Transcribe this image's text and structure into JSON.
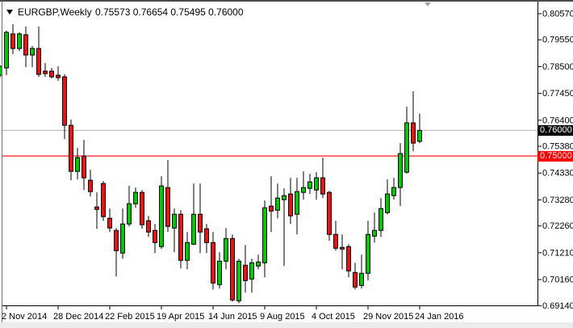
{
  "window": {
    "title_symbol": "EURGBP,Weekly",
    "title_ohlc": "0.75573 0.76654 0.75495 0.76000",
    "icons": {
      "symbol_dropdown": "triangle-down-icon",
      "shift_marker": "triangle-down-icon"
    }
  },
  "y_axis": {
    "labels": [
      "0.80570",
      "0.79550",
      "0.78500",
      "0.77450",
      "0.76400",
      "0.75380",
      "0.74330",
      "0.73280",
      "0.72260",
      "0.71210",
      "0.70160",
      "0.69140"
    ],
    "current_price_badge": {
      "text": "0.76000",
      "bg": "#000000",
      "fg": "#ffffff"
    },
    "line_badge": {
      "text": "0.75000",
      "bg": "#ff0000",
      "fg": "#ffffff"
    }
  },
  "x_axis": {
    "ticks": [
      {
        "label": "2 Nov 2014",
        "index": 0
      },
      {
        "label": "28 Dec 2014",
        "index": 8
      },
      {
        "label": "22 Feb 2015",
        "index": 16
      },
      {
        "label": "19 Apr 2015",
        "index": 24
      },
      {
        "label": "14 Jun 2015",
        "index": 32
      },
      {
        "label": "9 Aug 2015",
        "index": 40
      },
      {
        "label": "4 Oct 2015",
        "index": 48
      },
      {
        "label": "29 Nov 2015",
        "index": 56
      },
      {
        "label": "24 Jan 2016",
        "index": 64
      }
    ]
  },
  "chart_data": {
    "type": "candlestick",
    "symbol": "EURGBP",
    "timeframe": "Weekly",
    "last_bar": {
      "open": 0.75573,
      "high": 0.76654,
      "low": 0.75495,
      "close": 0.76
    },
    "y_range": {
      "top": 0.8057,
      "bottom": 0.6914
    },
    "hlines": [
      {
        "price": 0.76,
        "color": "#bababa",
        "role": "current-price-line"
      },
      {
        "price": 0.75,
        "color": "#ff0000",
        "role": "horizontal-level-line"
      }
    ],
    "up_color": "#00cb00",
    "down_color": "#ee1111",
    "outline_color": "#000000",
    "first_candle_index": -1,
    "candles": [
      [
        0.78164,
        0.7856,
        0.78069,
        0.78512
      ],
      [
        0.78449,
        0.79905,
        0.78164,
        0.79842
      ],
      [
        0.79779,
        0.80158,
        0.78987,
        0.79209
      ],
      [
        0.79209,
        0.79842,
        0.79114,
        0.79779
      ],
      [
        0.79747,
        0.80063,
        0.7848,
        0.78955
      ],
      [
        0.78955,
        0.79304,
        0.7848,
        0.79209
      ],
      [
        0.79209,
        0.80063,
        0.781,
        0.78196
      ],
      [
        0.78322,
        0.78638,
        0.781,
        0.78227
      ],
      [
        0.78322,
        0.78449,
        0.78037,
        0.781
      ],
      [
        0.78164,
        0.78512,
        0.77942,
        0.78069
      ],
      [
        0.781,
        0.78196,
        0.75663,
        0.76201
      ],
      [
        0.76201,
        0.76422,
        0.74049,
        0.74397
      ],
      [
        0.74397,
        0.75315,
        0.74081,
        0.74935
      ],
      [
        0.74998,
        0.75631,
        0.73669,
        0.74144
      ],
      [
        0.74049,
        0.7446,
        0.73416,
        0.73606
      ],
      [
        0.73004,
        0.73574,
        0.72148,
        0.72909
      ],
      [
        0.73922,
        0.74017,
        0.72465,
        0.72624
      ],
      [
        0.7256,
        0.7294,
        0.72022,
        0.7218
      ],
      [
        0.72085,
        0.7218,
        0.7028,
        0.71293
      ],
      [
        0.71198,
        0.7294,
        0.70976,
        0.72338
      ],
      [
        0.72338,
        0.73827,
        0.72243,
        0.7313
      ],
      [
        0.7313,
        0.73764,
        0.72972,
        0.73574
      ],
      [
        0.73574,
        0.73669,
        0.72148,
        0.72307
      ],
      [
        0.72465,
        0.72655,
        0.71832,
        0.72022
      ],
      [
        0.72085,
        0.72338,
        0.71198,
        0.7161
      ],
      [
        0.71451,
        0.74207,
        0.71356,
        0.73827
      ],
      [
        0.73764,
        0.7484,
        0.72022,
        0.72243
      ],
      [
        0.7218,
        0.7294,
        0.7123,
        0.72718
      ],
      [
        0.72718,
        0.72877,
        0.70596,
        0.70913
      ],
      [
        0.70913,
        0.72022,
        0.70565,
        0.7161
      ],
      [
        0.71546,
        0.73922,
        0.71515,
        0.72718
      ],
      [
        0.72718,
        0.73922,
        0.71198,
        0.72022
      ],
      [
        0.72148,
        0.72338,
        0.71198,
        0.7161
      ],
      [
        0.7161,
        0.72022,
        0.69773,
        0.70026
      ],
      [
        0.69963,
        0.7123,
        0.69805,
        0.70881
      ],
      [
        0.70881,
        0.7218,
        0.70565,
        0.71768
      ],
      [
        0.71768,
        0.71927,
        0.69298,
        0.69362
      ],
      [
        0.6933,
        0.70976,
        0.69235,
        0.70881
      ],
      [
        0.70723,
        0.71515,
        0.69646,
        0.70121
      ],
      [
        0.70184,
        0.70976,
        0.69646,
        0.70818
      ],
      [
        0.70691,
        0.71135,
        0.70565,
        0.70849
      ],
      [
        0.70818,
        0.73257,
        0.70248,
        0.72972
      ],
      [
        0.73035,
        0.74207,
        0.72022,
        0.72845
      ],
      [
        0.72877,
        0.73922,
        0.7256,
        0.73352
      ],
      [
        0.73289,
        0.73732,
        0.70692,
        0.73447
      ],
      [
        0.73511,
        0.74144,
        0.72338,
        0.72655
      ],
      [
        0.72718,
        0.74144,
        0.71927,
        0.73606
      ],
      [
        0.73574,
        0.74397,
        0.73289,
        0.73764
      ],
      [
        0.73732,
        0.74302,
        0.73511,
        0.73986
      ],
      [
        0.73669,
        0.74365,
        0.73289,
        0.74144
      ],
      [
        0.74144,
        0.74935,
        0.73352,
        0.73511
      ],
      [
        0.73574,
        0.73637,
        0.71673,
        0.71927
      ],
      [
        0.71927,
        0.72465,
        0.71293,
        0.71388
      ],
      [
        0.7142,
        0.71927,
        0.70565,
        0.71356
      ],
      [
        0.71451,
        0.71546,
        0.70248,
        0.70501
      ],
      [
        0.70438,
        0.70818,
        0.69773,
        0.69868
      ],
      [
        0.69931,
        0.71135,
        0.69805,
        0.70406
      ],
      [
        0.70406,
        0.72465,
        0.70121,
        0.71927
      ],
      [
        0.71863,
        0.72782,
        0.7161,
        0.72085
      ],
      [
        0.72085,
        0.73352,
        0.71832,
        0.7294
      ],
      [
        0.72782,
        0.74081,
        0.72718,
        0.73511
      ],
      [
        0.73447,
        0.74144,
        0.73289,
        0.73764
      ],
      [
        0.73764,
        0.75504,
        0.73035,
        0.75093
      ],
      [
        0.74365,
        0.76929,
        0.74302,
        0.76296
      ],
      [
        0.76296,
        0.77531,
        0.75188,
        0.75504
      ],
      [
        0.75573,
        0.76654,
        0.75495,
        0.76
      ]
    ]
  }
}
